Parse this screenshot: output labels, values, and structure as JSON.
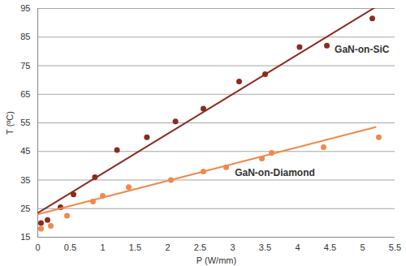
{
  "chart_data": {
    "type": "scatter",
    "x_label": "P (W/mm)",
    "y_label": "T (ºC)",
    "xlim": [
      0,
      5.5
    ],
    "xticks": [
      0,
      0.5,
      1,
      1.5,
      2,
      2.5,
      3,
      3.5,
      4,
      4.5,
      5,
      5.5
    ],
    "ylim": [
      15,
      95
    ],
    "yticks": [
      15,
      25,
      35,
      45,
      55,
      65,
      75,
      85,
      95
    ],
    "grid": "y",
    "series": [
      {
        "name": "GaN-on-SiC",
        "color": "#8b2b1f",
        "marker": "circle",
        "x": [
          0.05,
          0.15,
          0.35,
          0.55,
          0.88,
          1.22,
          1.68,
          2.12,
          2.55,
          3.1,
          3.5,
          4.03,
          4.45,
          5.15
        ],
        "values": [
          20,
          21,
          25.5,
          30,
          36,
          45.5,
          50,
          55.5,
          60,
          69.5,
          72,
          81.5,
          82,
          91.5
        ],
        "trendline": {
          "x": [
            0,
            5.2
          ],
          "values": [
            23.5,
            95.5
          ]
        }
      },
      {
        "name": "GaN-on-Diamond",
        "color": "#ef8a4a",
        "marker": "circle",
        "x": [
          0.05,
          0.2,
          0.45,
          0.85,
          1.0,
          1.4,
          2.05,
          2.55,
          2.9,
          3.45,
          3.6,
          4.4,
          5.25
        ],
        "values": [
          18,
          19,
          22.5,
          27.5,
          29.5,
          32.5,
          35,
          38,
          39.5,
          42.5,
          44.5,
          46.5,
          50
        ],
        "trendline": {
          "x": [
            0,
            5.2
          ],
          "values": [
            23,
            53.5
          ]
        }
      }
    ],
    "annotations": [
      {
        "text": "GaN-on-SiC",
        "x": 4.57,
        "y": 80.5
      },
      {
        "text": "GaN-on-Diamond",
        "x": 3.65,
        "y": 37.5
      }
    ]
  }
}
